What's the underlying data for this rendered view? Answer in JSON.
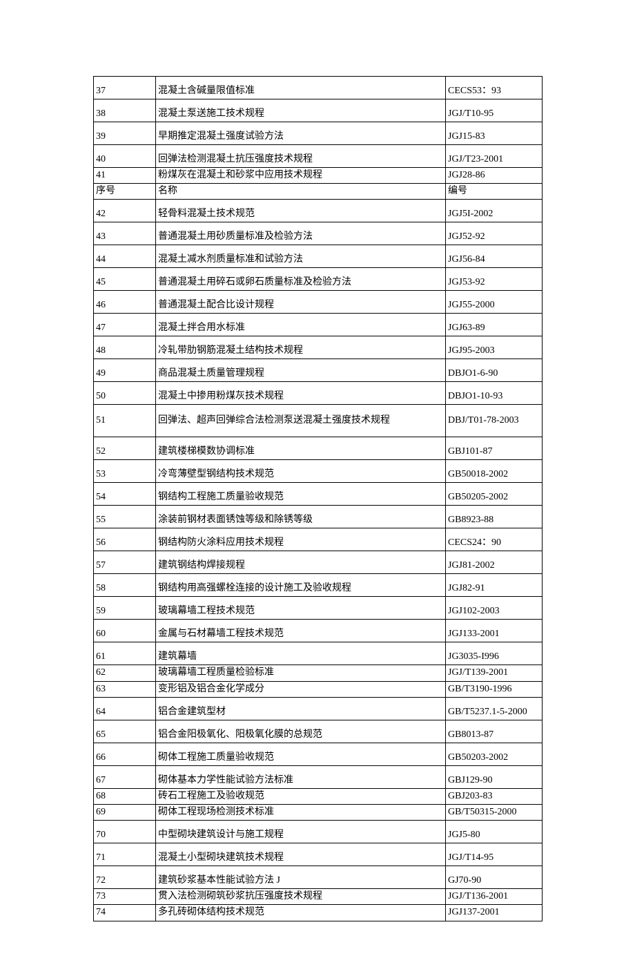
{
  "table": {
    "columns": {
      "c1_width": 90,
      "c2_width": 420,
      "c3_width": 140
    },
    "border_color": "#000000",
    "background_color": "#ffffff",
    "font_family": "SimSun",
    "font_size_pt": 10.5,
    "rows": [
      {
        "h": "tall",
        "num": "37",
        "name": "混凝土含碱量限值标准",
        "code": "CECS53：93"
      },
      {
        "h": "tall",
        "num": "38",
        "name": "混凝土泵送施工技术规程",
        "code": "JGJ/T10-95"
      },
      {
        "h": "tall",
        "num": "39",
        "name": "早期推定混凝土强度试验方法",
        "code": "JGJ15-83"
      },
      {
        "h": "tall",
        "num": "40",
        "name": "回弹法检测混凝土抗压强度技术规程",
        "code": "JGJ/T23-2001"
      },
      {
        "h": "short",
        "num": "41",
        "name": "粉煤灰在混凝土和砂浆中应用技术规程",
        "code": "JGJ28-86"
      },
      {
        "h": "short",
        "num": "序号",
        "name": "名称",
        "code": "编号"
      },
      {
        "h": "tall",
        "num": "42",
        "name": "轻骨料混凝土技术规范",
        "code": "JGJ5I-2002"
      },
      {
        "h": "tall",
        "num": "43",
        "name": "普通混凝土用砂质量标准及检验方法",
        "code": "JGJ52-92"
      },
      {
        "h": "tall",
        "num": "44",
        "name": "混凝土减水剂质量标准和试验方法",
        "code": "JGJ56-84"
      },
      {
        "h": "tall",
        "num": "45",
        "name": "普通混凝土用碎石或卵石质量标准及检验方法",
        "code": "JGJ53-92"
      },
      {
        "h": "tall",
        "num": "46",
        "name": "普通混凝土配合比设计规程",
        "code": "JGJ55-2000"
      },
      {
        "h": "tall",
        "num": "47",
        "name": "混凝土拌合用水标准",
        "code": "JGJ63-89"
      },
      {
        "h": "tall",
        "num": "48",
        "name": "冷轧带肋钢筋混凝土结构技术规程",
        "code": "JGJ95-2003"
      },
      {
        "h": "tall",
        "num": "49",
        "name": "商品混凝土质量管理规程",
        "code": "DBJO1-6-90"
      },
      {
        "h": "tall",
        "num": "50",
        "name": "混凝土中掺用粉煤灰技术规程",
        "code": "DBJO1-10-93"
      },
      {
        "h": "multi",
        "num": "51",
        "name": "回弹法、超声回弹综合法检测泵送混凝土强度技术规程",
        "code": "DBJ/T01-78-2003"
      },
      {
        "h": "tall",
        "num": "52",
        "name": "建筑楼梯模数协调标准",
        "code": "GBJ101-87"
      },
      {
        "h": "tall",
        "num": "53",
        "name": "冷弯薄壁型钢结构技术规范",
        "code": "GB50018-2002"
      },
      {
        "h": "tall",
        "num": "54",
        "name": "钢结构工程施工质量验收规范",
        "code": "GB50205-2002"
      },
      {
        "h": "tall",
        "num": "55",
        "name": "涂装前钢材表面锈蚀等级和除锈等级",
        "code": "GB8923-88"
      },
      {
        "h": "tall",
        "num": "56",
        "name": "钢结构防火涂料应用技术规程",
        "code": "CECS24：90"
      },
      {
        "h": "tall",
        "num": "57",
        "name": "建筑钢结构焊接规程",
        "code": "JGJ81-2002"
      },
      {
        "h": "tall",
        "num": "58",
        "name": "钢结构用高强螺栓连接的设计施工及验收规程",
        "code": "JGJ82-91"
      },
      {
        "h": "tall",
        "num": "59",
        "name": "玻璃幕墙工程技术规范",
        "code": "JGJ102-2003"
      },
      {
        "h": "tall",
        "num": "60",
        "name": "金属与石材幕墙工程技术规范",
        "code": "JGJ133-2001"
      },
      {
        "h": "tall",
        "num": "61",
        "name": "建筑幕墙",
        "code": "JG3035-I996"
      },
      {
        "h": "short",
        "num": "62",
        "name": "玻璃幕墙工程质量检验标准",
        "code": "JGJ/T139-2001"
      },
      {
        "h": "short",
        "num": "63",
        "name": "变形铝及铝合金化学成分",
        "code": "GB/T3190-1996"
      },
      {
        "h": "tall",
        "num": "64",
        "name": "铝合金建筑型材",
        "code": "GB/T5237.1-5-2000"
      },
      {
        "h": "tall",
        "num": "65",
        "name": "铝合金阳极氧化、阳极氧化膜的总规范",
        "code": "GB8013-87"
      },
      {
        "h": "tall",
        "num": "66",
        "name": "砌体工程施工质量验收规范",
        "code": "GB50203-2002"
      },
      {
        "h": "tall",
        "num": "67",
        "name": "砌体基本力学性能试验方法标准",
        "code": "GBJ129-90"
      },
      {
        "h": "short",
        "num": "68",
        "name": "砖石工程施工及验收规范",
        "code": "GBJ203-83"
      },
      {
        "h": "short",
        "num": "69",
        "name": "砌体工程现场检测技术标准",
        "code": "GB/T50315-2000"
      },
      {
        "h": "tall",
        "num": "70",
        "name": "中型砌块建筑设计与施工规程",
        "code": "JGJ5-80"
      },
      {
        "h": "tall",
        "num": "71",
        "name": "混凝土小型砌块建筑技术规程",
        "code": "JGJ/T14-95"
      },
      {
        "h": "tall",
        "num": "72",
        "name": "建筑砂浆基本性能试验方法 J",
        "code": "GJ70-90"
      },
      {
        "h": "short",
        "num": "73",
        "name": "贯入法检测砌筑砂浆抗压强度技术规程",
        "code": "JGJ/T136-2001"
      },
      {
        "h": "short",
        "num": "74",
        "name": "多孔砖砌体结构技术规范",
        "code": "JGJ137-2001"
      }
    ]
  }
}
